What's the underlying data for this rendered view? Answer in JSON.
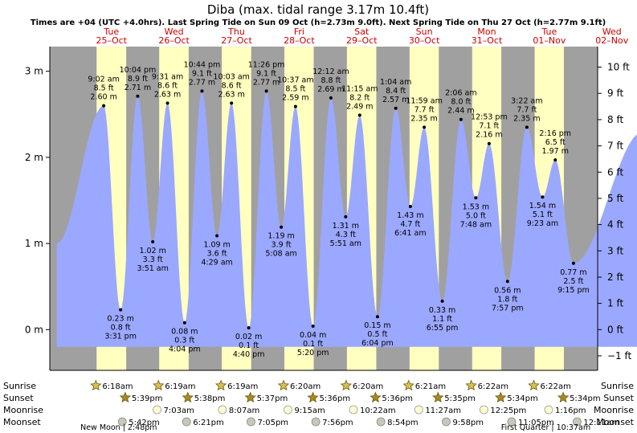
{
  "title": "Diba (max. tidal range 3.17m 10.4ft)",
  "subtitle": "Times are +04 (UTC +4.0hrs). Last Spring Tide on Sun 09 Oct (h=2.73m 9.0ft). Next Spring Tide on Thu 27 Oct (h=2.77m 9.1ft)",
  "colors": {
    "night": "#a0a0a0",
    "day": "#ffffc0",
    "water": "#9ba8ff",
    "date_text": "#cc0000",
    "text": "#000000"
  },
  "days": [
    {
      "weekday": "Tue",
      "date": "25–Oct"
    },
    {
      "weekday": "Wed",
      "date": "26–Oct"
    },
    {
      "weekday": "Thu",
      "date": "27–Oct"
    },
    {
      "weekday": "Fri",
      "date": "28–Oct"
    },
    {
      "weekday": "Sat",
      "date": "29–Oct"
    },
    {
      "weekday": "Sun",
      "date": "30–Oct"
    },
    {
      "weekday": "Mon",
      "date": "31–Oct"
    },
    {
      "weekday": "Tue",
      "date": "01–Nov"
    },
    {
      "weekday": "Wed",
      "date": "02–Nov"
    }
  ],
  "chart_data": {
    "type": "area",
    "x_unit": "hours since 00:00 Tue 25 Oct",
    "start_value_m": 1.0,
    "end_value_m": 2.3,
    "x_range_hours": [
      -9,
      216
    ],
    "ylim_m": [
      -0.2,
      3.1
    ],
    "y_ticks_m": [
      "3 m",
      "2 m",
      "1 m",
      "0 m"
    ],
    "y_ticks_m_values": [
      3,
      2,
      1,
      0
    ],
    "y_ticks_ft": [
      "10 ft",
      "9 ft",
      "8 ft",
      "7 ft",
      "6 ft",
      "5 ft",
      "4 ft",
      "3 ft",
      "2 ft",
      "1 ft",
      "0 ft",
      "−1 ft"
    ],
    "y_ticks_ft_values": [
      10,
      9,
      8,
      7,
      6,
      5,
      4,
      3,
      2,
      1,
      0,
      -1
    ],
    "daylight": [
      {
        "sunrise": "6:18",
        "sunset": "17:39"
      },
      {
        "sunrise": "6:19",
        "sunset": "17:38"
      },
      {
        "sunrise": "6:19",
        "sunset": "17:37"
      },
      {
        "sunrise": "6:20",
        "sunset": "17:36"
      },
      {
        "sunrise": "6:20",
        "sunset": "17:36"
      },
      {
        "sunrise": "6:21",
        "sunset": "17:35"
      },
      {
        "sunrise": "6:22",
        "sunset": "17:34"
      },
      {
        "sunrise": "6:22",
        "sunset": "17:34"
      }
    ],
    "tides": [
      {
        "day": 0,
        "time": "9:02 am",
        "hm": "9:02",
        "m": 2.6,
        "ft": "8.5 ft",
        "mlabel": "2.60 m",
        "type": "high"
      },
      {
        "day": 0,
        "time": "3:31 pm",
        "hm": "15:31",
        "m": 0.23,
        "ft": "0.8 ft",
        "mlabel": "0.23 m",
        "type": "low"
      },
      {
        "day": 0,
        "time": "10:04 pm",
        "hm": "22:04",
        "m": 2.71,
        "ft": "8.9 ft",
        "mlabel": "2.71 m",
        "type": "high"
      },
      {
        "day": 1,
        "time": "3:51 am",
        "hm": "3:51",
        "m": 1.02,
        "ft": "3.3 ft",
        "mlabel": "1.02 m",
        "type": "low"
      },
      {
        "day": 1,
        "time": "9:31 am",
        "hm": "9:31",
        "m": 2.63,
        "ft": "8.6 ft",
        "mlabel": "2.63 m",
        "type": "high"
      },
      {
        "day": 1,
        "time": "4:04 pm",
        "hm": "16:04",
        "m": 0.08,
        "ft": "0.3 ft",
        "mlabel": "0.08 m",
        "type": "low"
      },
      {
        "day": 1,
        "time": "10:44 pm",
        "hm": "22:44",
        "m": 2.77,
        "ft": "9.1 ft",
        "mlabel": "2.77 m",
        "type": "high"
      },
      {
        "day": 2,
        "time": "4:29 am",
        "hm": "4:29",
        "m": 1.09,
        "ft": "3.6 ft",
        "mlabel": "1.09 m",
        "type": "low"
      },
      {
        "day": 2,
        "time": "10:03 am",
        "hm": "10:03",
        "m": 2.63,
        "ft": "8.6 ft",
        "mlabel": "2.63 m",
        "type": "high"
      },
      {
        "day": 2,
        "time": "4:40 pm",
        "hm": "16:40",
        "m": 0.02,
        "ft": "0.1 ft",
        "mlabel": "0.02 m",
        "type": "low"
      },
      {
        "day": 2,
        "time": "11:26 pm",
        "hm": "23:26",
        "m": 2.77,
        "ft": "9.1 ft",
        "mlabel": "2.77 m",
        "type": "high"
      },
      {
        "day": 3,
        "time": "5:08 am",
        "hm": "5:08",
        "m": 1.19,
        "ft": "3.9 ft",
        "mlabel": "1.19 m",
        "type": "low"
      },
      {
        "day": 3,
        "time": "10:37 am",
        "hm": "10:37",
        "m": 2.59,
        "ft": "8.5 ft",
        "mlabel": "2.59 m",
        "type": "high"
      },
      {
        "day": 3,
        "time": "5:20 pm",
        "hm": "17:20",
        "m": 0.04,
        "ft": "0.1 ft",
        "mlabel": "0.04 m",
        "type": "low"
      },
      {
        "day": 4,
        "time": "12:12 am",
        "hm": "0:12",
        "m": 2.69,
        "ft": "8.8 ft",
        "mlabel": "2.69 m",
        "type": "high"
      },
      {
        "day": 4,
        "time": "5:51 am",
        "hm": "5:51",
        "m": 1.31,
        "ft": "4.3 ft",
        "mlabel": "1.31 m",
        "type": "low"
      },
      {
        "day": 4,
        "time": "11:15 am",
        "hm": "11:15",
        "m": 2.49,
        "ft": "8.2 ft",
        "mlabel": "2.49 m",
        "type": "high"
      },
      {
        "day": 4,
        "time": "6:04 pm",
        "hm": "18:04",
        "m": 0.15,
        "ft": "0.5 ft",
        "mlabel": "0.15 m",
        "type": "low"
      },
      {
        "day": 5,
        "time": "1:04 am",
        "hm": "1:04",
        "m": 2.57,
        "ft": "8.4 ft",
        "mlabel": "2.57 m",
        "type": "high"
      },
      {
        "day": 5,
        "time": "6:41 am",
        "hm": "6:41",
        "m": 1.43,
        "ft": "4.7 ft",
        "mlabel": "1.43 m",
        "type": "low"
      },
      {
        "day": 5,
        "time": "11:59 am",
        "hm": "11:59",
        "m": 2.35,
        "ft": "7.7 ft",
        "mlabel": "2.35 m",
        "type": "high"
      },
      {
        "day": 5,
        "time": "6:55 pm",
        "hm": "18:55",
        "m": 0.33,
        "ft": "1.1 ft",
        "mlabel": "0.33 m",
        "type": "low"
      },
      {
        "day": 6,
        "time": "2:06 am",
        "hm": "2:06",
        "m": 2.44,
        "ft": "8.0 ft",
        "mlabel": "2.44 m",
        "type": "high"
      },
      {
        "day": 6,
        "time": "7:48 am",
        "hm": "7:48",
        "m": 1.53,
        "ft": "5.0 ft",
        "mlabel": "1.53 m",
        "type": "low"
      },
      {
        "day": 6,
        "time": "12:53 pm",
        "hm": "12:53",
        "m": 2.16,
        "ft": "7.1 ft",
        "mlabel": "2.16 m",
        "type": "high"
      },
      {
        "day": 6,
        "time": "7:57 pm",
        "hm": "19:57",
        "m": 0.56,
        "ft": "1.8 ft",
        "mlabel": "0.56 m",
        "type": "low"
      },
      {
        "day": 7,
        "time": "3:22 am",
        "hm": "3:22",
        "m": 2.35,
        "ft": "7.7 ft",
        "mlabel": "2.35 m",
        "type": "high"
      },
      {
        "day": 7,
        "time": "9:23 am",
        "hm": "9:23",
        "m": 1.54,
        "ft": "5.1 ft",
        "mlabel": "1.54 m",
        "type": "low"
      },
      {
        "day": 7,
        "time": "2:16 pm",
        "hm": "14:16",
        "m": 1.97,
        "ft": "6.5 ft",
        "mlabel": "1.97 m",
        "type": "high"
      },
      {
        "day": 7,
        "time": "9:15 pm",
        "hm": "21:15",
        "m": 0.77,
        "ft": "2.5 ft",
        "mlabel": "0.77 m",
        "type": "low"
      }
    ]
  },
  "bottom": {
    "row_labels": [
      "Sunrise",
      "Sunset",
      "Moonrise",
      "Moonset"
    ],
    "sunrise": [
      {
        "day": 0,
        "time": "6:18am"
      },
      {
        "day": 1,
        "time": "6:19am"
      },
      {
        "day": 2,
        "time": "6:19am"
      },
      {
        "day": 3,
        "time": "6:20am"
      },
      {
        "day": 4,
        "time": "6:20am"
      },
      {
        "day": 5,
        "time": "6:21am"
      },
      {
        "day": 6,
        "time": "6:22am"
      },
      {
        "day": 7,
        "time": "6:22am"
      }
    ],
    "sunset": [
      {
        "day": 0,
        "time": "5:39pm"
      },
      {
        "day": 1,
        "time": "5:38pm"
      },
      {
        "day": 2,
        "time": "5:37pm"
      },
      {
        "day": 3,
        "time": "5:36pm"
      },
      {
        "day": 4,
        "time": "5:36pm"
      },
      {
        "day": 5,
        "time": "5:35pm"
      },
      {
        "day": 6,
        "time": "5:34pm"
      },
      {
        "day": 7,
        "time": "5:34pm"
      }
    ],
    "moonrise": [
      {
        "day": 1,
        "hm": "7:03",
        "time": "7:03am"
      },
      {
        "day": 2,
        "hm": "8:07",
        "time": "8:07am"
      },
      {
        "day": 3,
        "hm": "9:15",
        "time": "9:15am"
      },
      {
        "day": 4,
        "hm": "10:22",
        "time": "10:22am"
      },
      {
        "day": 5,
        "hm": "11:27",
        "time": "11:27am"
      },
      {
        "day": 6,
        "hm": "12:25",
        "time": "12:25pm"
      },
      {
        "day": 7,
        "hm": "13:16",
        "time": "1:16pm"
      }
    ],
    "moonset": [
      {
        "day": 0,
        "hm": "17:42",
        "time": "5:42pm"
      },
      {
        "day": 1,
        "hm": "18:21",
        "time": "6:21pm"
      },
      {
        "day": 2,
        "hm": "19:05",
        "time": "7:05pm"
      },
      {
        "day": 3,
        "hm": "19:56",
        "time": "7:56pm"
      },
      {
        "day": 4,
        "hm": "20:54",
        "time": "8:54pm"
      },
      {
        "day": 5,
        "hm": "21:58",
        "time": "9:58pm"
      },
      {
        "day": 6,
        "hm": "23:05",
        "time": "11:05pm"
      },
      {
        "day": 8,
        "hm": "0:11",
        "time": "12:11am"
      }
    ],
    "moon_phases": [
      {
        "label": "New Moon",
        "time": "2:48pm",
        "day": 0,
        "hm": "14:48"
      },
      {
        "label": "First Quarter",
        "time": "10:37am",
        "day": 7,
        "hm": "10:37"
      }
    ]
  }
}
